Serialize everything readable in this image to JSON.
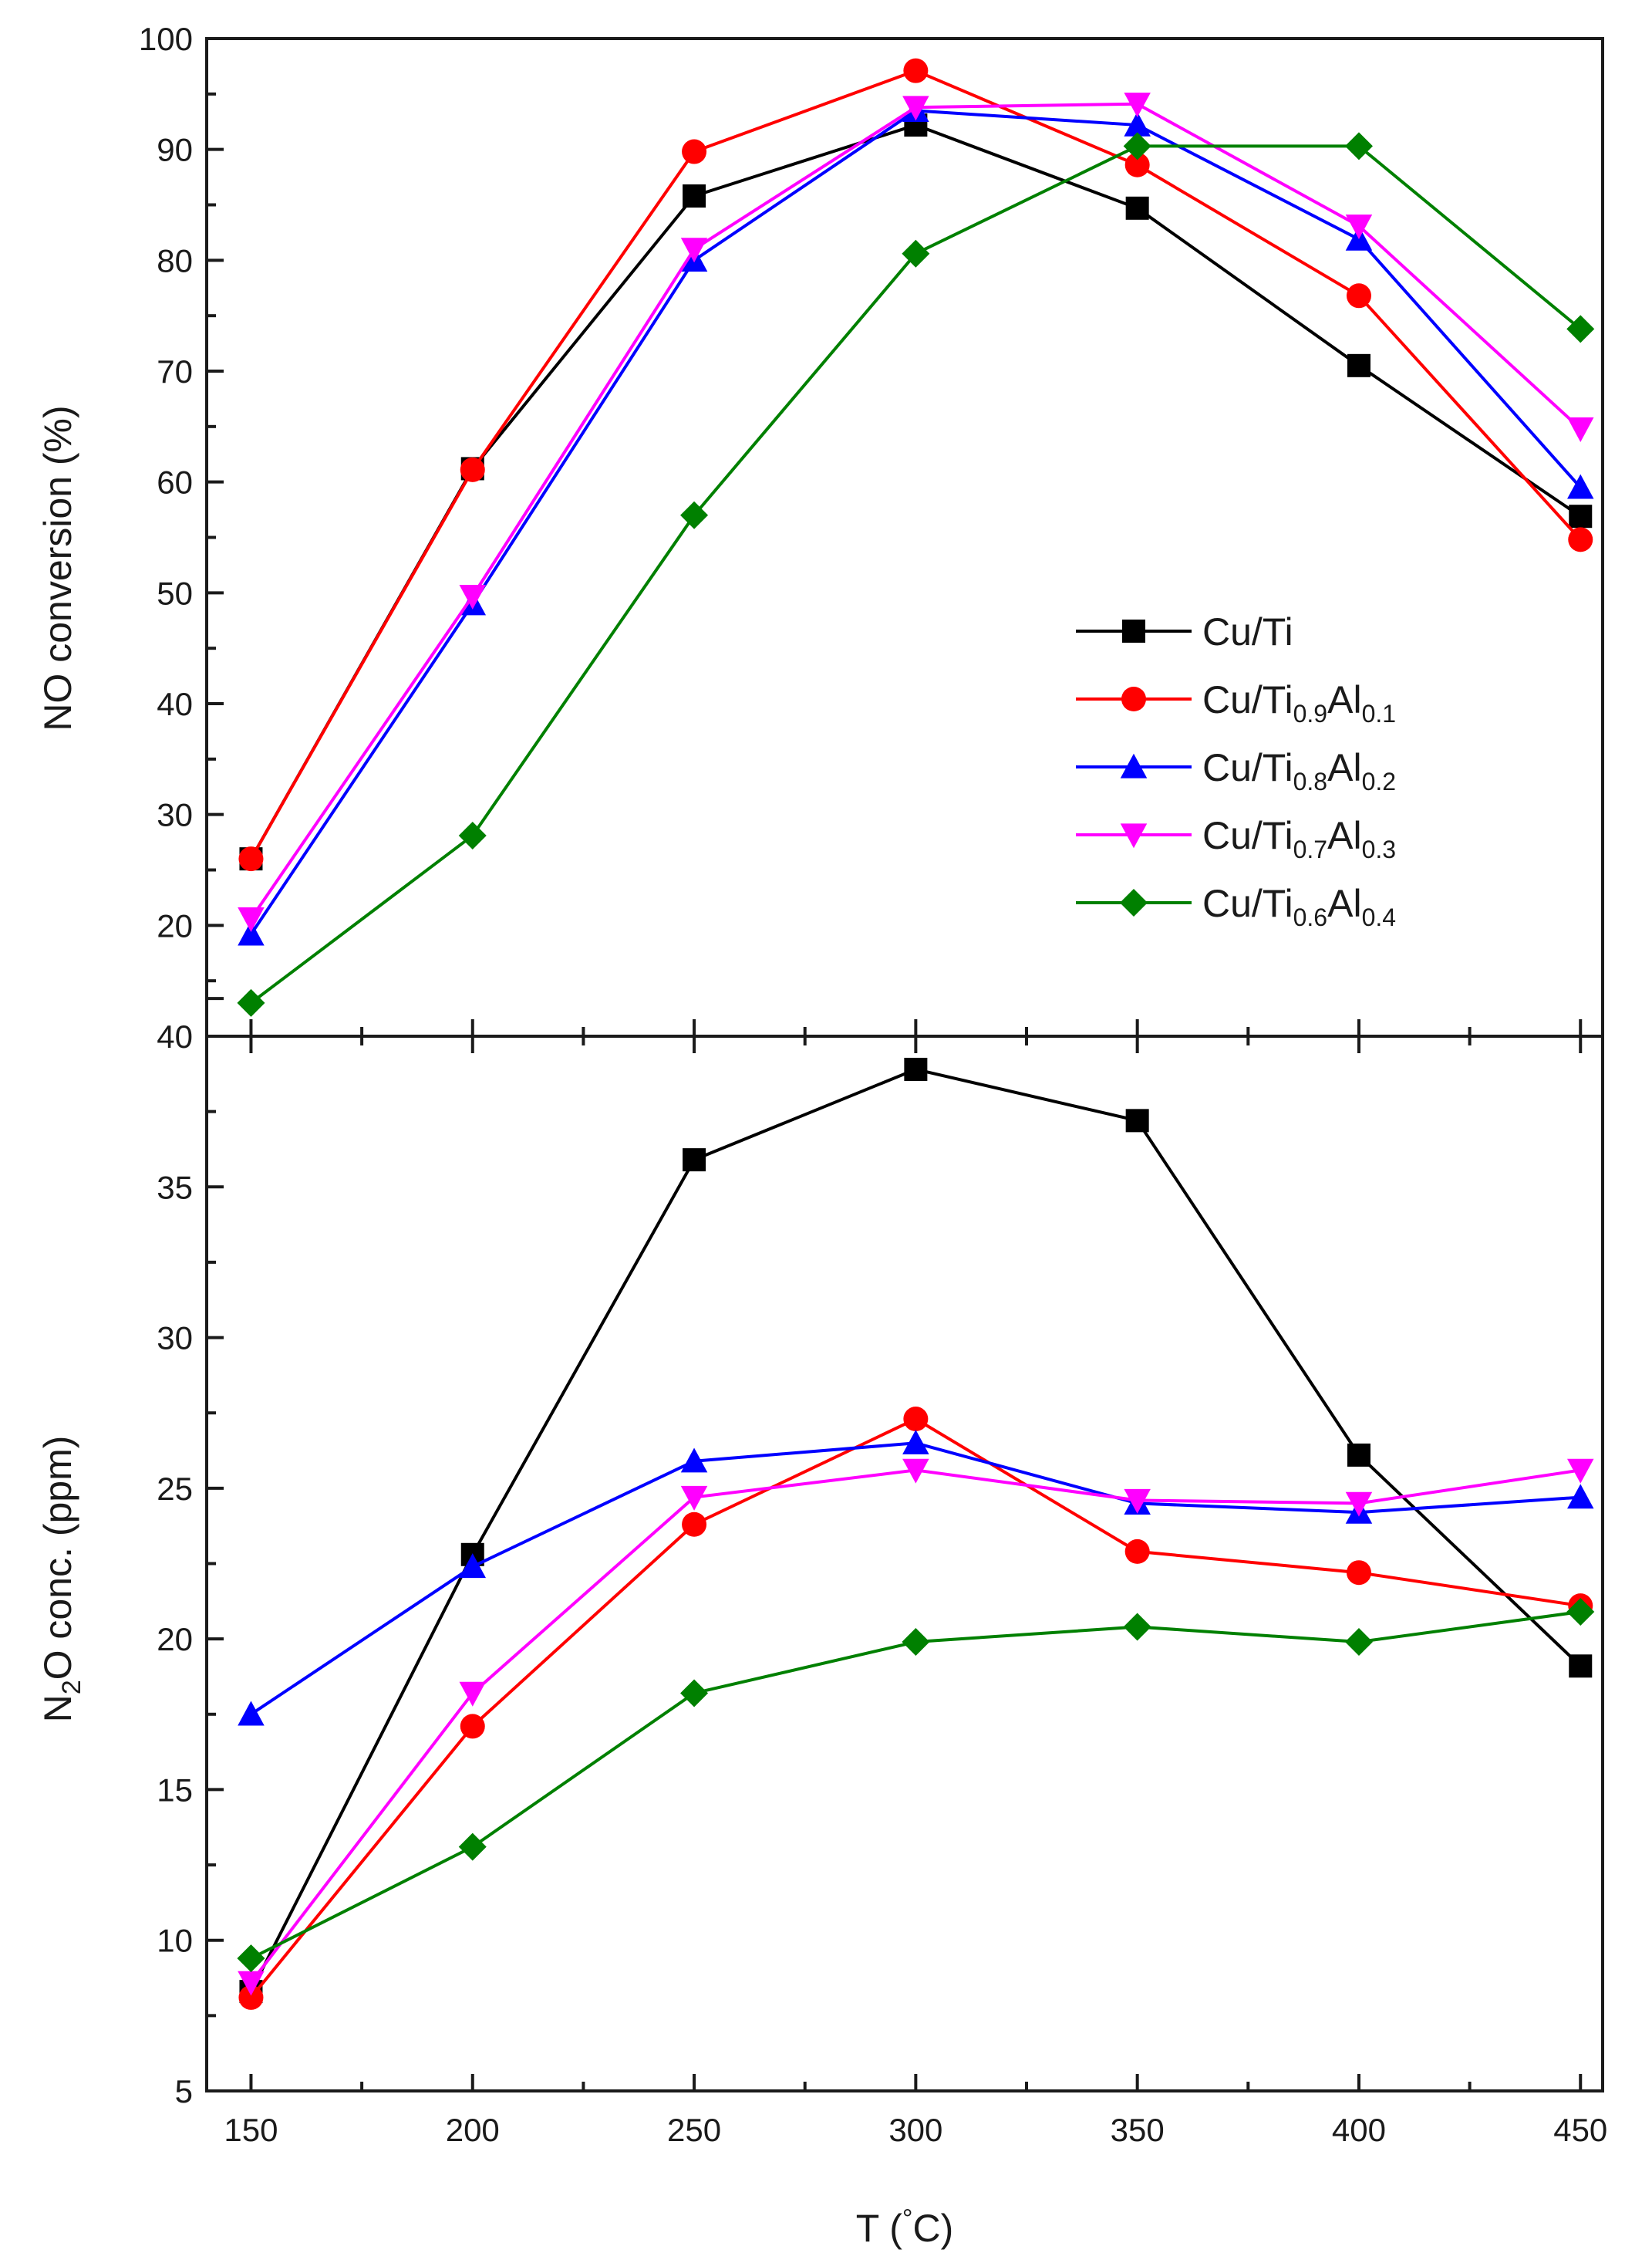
{
  "chart_data": [
    {
      "type": "line",
      "panel": "top",
      "xlabel": "",
      "ylabel": "NO conversion (%)",
      "xlim": [
        140,
        455
      ],
      "ylim": [
        10,
        100
      ],
      "x": [
        150,
        200,
        250,
        300,
        350,
        400,
        450
      ],
      "yticks": [
        20,
        30,
        40,
        50,
        60,
        70,
        80,
        90,
        100
      ],
      "ytick_labels": [
        "20",
        "30",
        "40",
        "50",
        "60",
        "70",
        "80",
        "90",
        "100"
      ],
      "series": [
        {
          "name": "Cu/Ti",
          "base": "Cu/Ti",
          "sub1": "",
          "el2": "",
          "sub2": "",
          "color": "#000000",
          "marker": "square",
          "values": [
            26.0,
            61.2,
            85.8,
            92.2,
            84.7,
            70.5,
            56.9
          ]
        },
        {
          "name": "Cu/Ti0.9Al0.1",
          "base": "Cu/Ti",
          "sub1": "0.9",
          "el2": "Al",
          "sub2": "0.1",
          "color": "#ff0000",
          "marker": "circle",
          "values": [
            26.0,
            61.1,
            89.8,
            97.1,
            88.6,
            76.8,
            54.8
          ]
        },
        {
          "name": "Cu/Ti0.8Al0.2",
          "base": "Cu/Ti",
          "sub1": "0.8",
          "el2": "Al",
          "sub2": "0.2",
          "color": "#0000ff",
          "marker": "triangle-up",
          "values": [
            19.2,
            49.0,
            80.0,
            93.5,
            92.2,
            81.9,
            59.5
          ]
        },
        {
          "name": "Cu/Ti0.7Al0.3",
          "base": "Cu/Ti",
          "sub1": "0.7",
          "el2": "Al",
          "sub2": "0.3",
          "color": "#ff00ff",
          "marker": "triangle-down",
          "values": [
            20.6,
            49.7,
            81.0,
            93.8,
            94.1,
            83.1,
            64.8
          ]
        },
        {
          "name": "Cu/Ti0.6Al0.4",
          "base": "Cu/Ti",
          "sub1": "0.6",
          "el2": "Al",
          "sub2": "0.4",
          "color": "#008000",
          "marker": "diamond",
          "values": [
            13.0,
            28.1,
            57.0,
            80.6,
            90.3,
            90.3,
            73.8
          ]
        }
      ],
      "legend": "center-right"
    },
    {
      "type": "line",
      "panel": "bottom",
      "xlabel": "T (°C)",
      "ylabel": "N2O conc. (ppm)",
      "xlim": [
        140,
        455
      ],
      "ylim": [
        5,
        40
      ],
      "x": [
        150,
        200,
        250,
        300,
        350,
        400,
        450
      ],
      "xticks": [
        150,
        200,
        250,
        300,
        350,
        400,
        450
      ],
      "xtick_labels": [
        "150",
        "200",
        "250",
        "300",
        "350",
        "400",
        "450"
      ],
      "yticks": [
        5,
        10,
        15,
        20,
        25,
        30,
        35,
        40
      ],
      "ytick_labels": [
        "5",
        "10",
        "15",
        "20",
        "25",
        "30",
        "35",
        "40"
      ],
      "series": [
        {
          "name": "Cu/Ti",
          "color": "#000000",
          "marker": "square",
          "values": [
            8.3,
            22.8,
            35.9,
            38.9,
            37.2,
            26.1,
            19.1
          ]
        },
        {
          "name": "Cu/Ti0.9Al0.1",
          "color": "#ff0000",
          "marker": "circle",
          "values": [
            8.1,
            17.1,
            23.8,
            27.3,
            22.9,
            22.2,
            21.1
          ]
        },
        {
          "name": "Cu/Ti0.8Al0.2",
          "color": "#0000ff",
          "marker": "triangle-up",
          "values": [
            17.5,
            22.4,
            25.9,
            26.5,
            24.5,
            24.2,
            24.7
          ]
        },
        {
          "name": "Cu/Ti0.7Al0.3",
          "color": "#ff00ff",
          "marker": "triangle-down",
          "values": [
            8.6,
            18.2,
            24.7,
            25.6,
            24.6,
            24.5,
            25.6
          ]
        },
        {
          "name": "Cu/Ti0.6Al0.4",
          "color": "#008000",
          "marker": "diamond",
          "values": [
            9.4,
            13.1,
            18.2,
            19.9,
            20.4,
            19.9,
            20.9
          ]
        }
      ]
    }
  ]
}
